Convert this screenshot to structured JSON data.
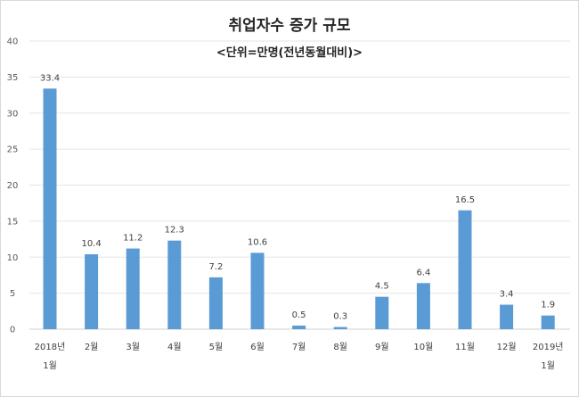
{
  "chart_data": {
    "type": "bar",
    "title": "취업자수 증가 규모",
    "subtitle": "<단위=만명(전년동월대비)>",
    "categories": [
      [
        "2018년",
        "1월"
      ],
      [
        "2월"
      ],
      [
        "3월"
      ],
      [
        "4월"
      ],
      [
        "5월"
      ],
      [
        "6월"
      ],
      [
        "7월"
      ],
      [
        "8월"
      ],
      [
        "9월"
      ],
      [
        "10월"
      ],
      [
        "11월"
      ],
      [
        "12월"
      ],
      [
        "2019년",
        "1월"
      ]
    ],
    "values": [
      33.4,
      10.4,
      11.2,
      12.3,
      7.2,
      10.6,
      0.5,
      0.3,
      4.5,
      6.4,
      16.5,
      3.4,
      1.9
    ],
    "value_labels": [
      "33.4",
      "10.4",
      "11.2",
      "12.3",
      "7.2",
      "10.6",
      "0.5",
      "0.3",
      "4.5",
      "6.4",
      "16.5",
      "3.4",
      "1.9"
    ],
    "yticks": [
      "0",
      "5",
      "10",
      "15",
      "20",
      "25",
      "30",
      "35",
      "40"
    ],
    "ylim": [
      0,
      40
    ],
    "grid": true,
    "xlabel": "",
    "ylabel": "",
    "bar_color": "#5b9bd5"
  }
}
